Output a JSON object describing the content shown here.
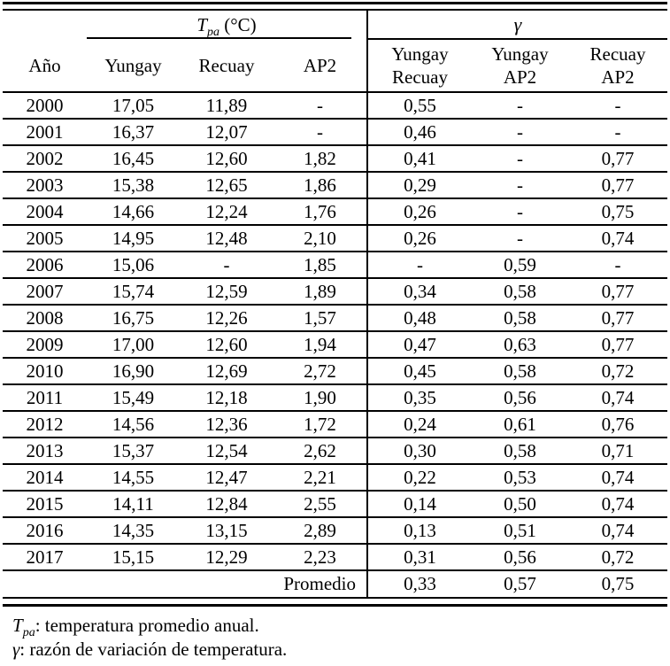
{
  "table": {
    "col_groups": {
      "tpa": {
        "symbol": "T",
        "subscript": "pa",
        "unit": " (°C)"
      },
      "gamma": {
        "symbol": "γ"
      }
    },
    "columns": [
      {
        "label": "Año"
      },
      {
        "label": "Yungay"
      },
      {
        "label": "Recuay"
      },
      {
        "label": "AP2"
      },
      {
        "line1": "Yungay",
        "line2": "Recuay"
      },
      {
        "line1": "Yungay",
        "line2": "AP2"
      },
      {
        "line1": "Recuay",
        "line2": "AP2"
      }
    ],
    "rows": [
      [
        "2000",
        "17,05",
        "11,89",
        "-",
        "0,55",
        "-",
        "-"
      ],
      [
        "2001",
        "16,37",
        "12,07",
        "-",
        "0,46",
        "-",
        "-"
      ],
      [
        "2002",
        "16,45",
        "12,60",
        "1,82",
        "0,41",
        "-",
        "0,77"
      ],
      [
        "2003",
        "15,38",
        "12,65",
        "1,86",
        "0,29",
        "-",
        "0,77"
      ],
      [
        "2004",
        "14,66",
        "12,24",
        "1,76",
        "0,26",
        "-",
        "0,75"
      ],
      [
        "2005",
        "14,95",
        "12,48",
        "2,10",
        "0,26",
        "-",
        "0,74"
      ],
      [
        "2006",
        "15,06",
        "-",
        "1,85",
        "-",
        "0,59",
        "-"
      ],
      [
        "2007",
        "15,74",
        "12,59",
        "1,89",
        "0,34",
        "0,58",
        "0,77"
      ],
      [
        "2008",
        "16,75",
        "12,26",
        "1,57",
        "0,48",
        "0,58",
        "0,77"
      ],
      [
        "2009",
        "17,00",
        "12,60",
        "1,94",
        "0,47",
        "0,63",
        "0,77"
      ],
      [
        "2010",
        "16,90",
        "12,69",
        "2,72",
        "0,45",
        "0,58",
        "0,72"
      ],
      [
        "2011",
        "15,49",
        "12,18",
        "1,90",
        "0,35",
        "0,56",
        "0,74"
      ],
      [
        "2012",
        "14,56",
        "12,36",
        "1,72",
        "0,24",
        "0,61",
        "0,76"
      ],
      [
        "2013",
        "15,37",
        "12,54",
        "2,62",
        "0,30",
        "0,58",
        "0,71"
      ],
      [
        "2014",
        "14,55",
        "12,47",
        "2,21",
        "0,22",
        "0,53",
        "0,74"
      ],
      [
        "2015",
        "14,11",
        "12,84",
        "2,55",
        "0,14",
        "0,50",
        "0,74"
      ],
      [
        "2016",
        "14,35",
        "13,15",
        "2,89",
        "0,13",
        "0,51",
        "0,74"
      ],
      [
        "2017",
        "15,15",
        "12,29",
        "2,23",
        "0,31",
        "0,56",
        "0,72"
      ]
    ],
    "summary_row": {
      "label": "Promedio",
      "values": [
        "0,33",
        "0,57",
        "0,75"
      ]
    }
  },
  "footnotes": [
    {
      "symbol": "T",
      "subscript": "pa",
      "text": ": temperatura promedio anual."
    },
    {
      "symbol": "γ",
      "text": ": razón de variación de temperatura."
    }
  ]
}
